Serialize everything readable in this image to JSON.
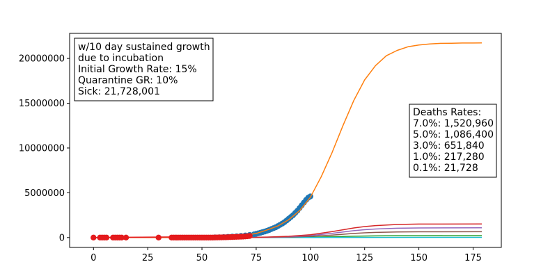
{
  "chart_data": {
    "type": "line",
    "title": "",
    "xlabel": "",
    "ylabel": "",
    "xlim": [
      -11,
      188
    ],
    "ylim": [
      -1100000,
      22800000
    ],
    "x_ticks": [
      "0",
      "25",
      "50",
      "75",
      "100",
      "125",
      "150",
      "175"
    ],
    "x_tick_values": [
      0,
      25,
      50,
      75,
      100,
      125,
      150,
      175
    ],
    "y_ticks": [
      "0",
      "5000000",
      "10000000",
      "15000000",
      "20000000"
    ],
    "y_tick_values": [
      0,
      5000000,
      10000000,
      15000000,
      20000000
    ],
    "grid": false,
    "projection": {
      "color": "#ff7f0e",
      "x": [
        0,
        40,
        60,
        70,
        75,
        80,
        85,
        90,
        95,
        100,
        105,
        110,
        115,
        120,
        125,
        130,
        135,
        140,
        145,
        150,
        155,
        160,
        165,
        170,
        175,
        179
      ],
      "values": [
        0,
        30000,
        150000,
        300000,
        450000,
        850000,
        1300000,
        2000000,
        3000000,
        4500000,
        6800000,
        9500000,
        12500000,
        15300000,
        17600000,
        19200000,
        20300000,
        20900000,
        21300000,
        21500000,
        21620000,
        21680000,
        21700000,
        21720000,
        21725000,
        21728000
      ]
    },
    "death_curves": [
      {
        "color": "#d62728",
        "x": [
          0,
          70,
          80,
          90,
          100,
          110,
          120,
          125,
          130,
          140,
          150,
          179
        ],
        "values": [
          0,
          0,
          60000,
          140000,
          320000,
          660000,
          1070000,
          1230000,
          1340000,
          1460000,
          1505000,
          1520960
        ]
      },
      {
        "color": "#9467bd",
        "x": [
          0,
          70,
          80,
          90,
          100,
          110,
          120,
          125,
          130,
          140,
          150,
          179
        ],
        "values": [
          0,
          0,
          43000,
          100000,
          230000,
          470000,
          770000,
          880000,
          960000,
          1040000,
          1075000,
          1086400
        ]
      },
      {
        "color": "#8c564b",
        "x": [
          0,
          70,
          80,
          90,
          100,
          110,
          120,
          125,
          130,
          140,
          150,
          179
        ],
        "values": [
          0,
          0,
          26000,
          60000,
          140000,
          280000,
          460000,
          530000,
          575000,
          625000,
          645000,
          651840
        ]
      },
      {
        "color": "#2ca02c",
        "x": [
          0,
          70,
          80,
          90,
          100,
          110,
          120,
          125,
          130,
          140,
          150,
          179
        ],
        "values": [
          0,
          0,
          9000,
          20000,
          45000,
          95000,
          150000,
          175000,
          190000,
          208000,
          215000,
          217280
        ]
      },
      {
        "color": "#17becf",
        "x": [
          0,
          100,
          125,
          150,
          179
        ],
        "values": [
          0,
          4500,
          17000,
          21500,
          21728
        ]
      }
    ],
    "observed_blue": {
      "color": "#1f77b4",
      "x": [
        56,
        58,
        60,
        62,
        64,
        66,
        68,
        70,
        72,
        74,
        75,
        76,
        77,
        78,
        79,
        80,
        81,
        82,
        83,
        84,
        85,
        86,
        87,
        88,
        89,
        90,
        91,
        92,
        93,
        94,
        95,
        96,
        97,
        98,
        99,
        100
      ],
      "values": [
        20000,
        30000,
        50000,
        80000,
        110000,
        140000,
        180000,
        230000,
        290000,
        360000,
        420000,
        480000,
        540000,
        610000,
        680000,
        760000,
        850000,
        950000,
        1050000,
        1150000,
        1280000,
        1420000,
        1560000,
        1720000,
        1900000,
        2100000,
        2300000,
        2500000,
        2750000,
        3000000,
        3300000,
        3600000,
        3900000,
        4200000,
        4450000,
        4600000
      ]
    },
    "observed_red": {
      "color": "#e41a1c",
      "x": [
        0,
        3,
        4,
        5,
        6,
        9,
        10,
        11,
        12,
        13,
        15,
        30,
        36,
        37,
        38,
        39,
        40,
        41,
        42,
        43,
        44,
        45,
        46,
        47,
        48,
        49,
        50,
        51,
        52,
        53,
        54,
        55,
        56,
        57,
        58,
        59,
        60,
        61,
        62,
        63,
        64,
        65,
        66,
        67,
        68,
        69,
        70,
        71,
        72
      ],
      "values": [
        0,
        0,
        0,
        0,
        0,
        0,
        0,
        0,
        0,
        0,
        0,
        0,
        0,
        0,
        0,
        0,
        0,
        0,
        0,
        0,
        0,
        0,
        0,
        0,
        0,
        0,
        0,
        0,
        0,
        0,
        0,
        0,
        10000,
        10000,
        20000,
        20000,
        30000,
        30000,
        40000,
        50000,
        60000,
        70000,
        80000,
        90000,
        100000,
        110000,
        130000,
        150000,
        180000
      ]
    },
    "red_fit_line": {
      "color": "#e41a1c",
      "x": [
        0,
        70,
        72
      ],
      "values": [
        0,
        130000,
        160000
      ]
    },
    "annotations": {
      "scenario_lines": [
        "w/10 day sustained growth",
        "due to incubation",
        "Initial Growth Rate: 15%",
        "Quarantine GR: 10%",
        "Sick: 21,728,001"
      ],
      "deaths_lines": [
        "Deaths Rates:",
        "7.0%: 1,520,960",
        "5.0%: 1,086,400",
        "3.0%: 651,840",
        "1.0%: 217,280",
        "0.1%: 21,728"
      ]
    }
  }
}
